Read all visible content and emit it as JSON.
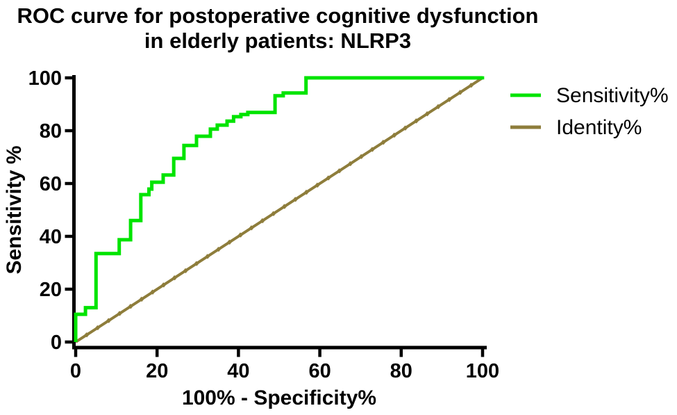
{
  "title": {
    "line1": "ROC curve for  postoperative cognitive dysfunction",
    "line2": "in elderly patients: NLRP3"
  },
  "legend": {
    "items": [
      {
        "label": "Sensitivity%",
        "color": "#00e400"
      },
      {
        "label": "Identity%",
        "color": "#8e7d3b"
      }
    ]
  },
  "chart_data": {
    "type": "line",
    "title": "ROC curve for postoperative cognitive dysfunction in elderly patients: NLRP3",
    "xlabel": "100% - Specificity%",
    "ylabel": "Sensitivity %",
    "xlim": [
      0,
      100
    ],
    "ylim": [
      0,
      100
    ],
    "x_ticks": [
      0,
      20,
      40,
      60,
      80,
      100
    ],
    "y_ticks": [
      0,
      20,
      40,
      60,
      80,
      100
    ],
    "grid": false,
    "legend_position": "right",
    "axis_color": "#000000",
    "series": [
      {
        "name": "Sensitivity%",
        "type": "step",
        "color": "#00e400",
        "points": [
          [
            0,
            0
          ],
          [
            0,
            10.5
          ],
          [
            2.4,
            10.5
          ],
          [
            2.4,
            13
          ],
          [
            5,
            13
          ],
          [
            5,
            33.5
          ],
          [
            10.7,
            33.5
          ],
          [
            10.7,
            38.7
          ],
          [
            13.5,
            38.7
          ],
          [
            13.5,
            46
          ],
          [
            16,
            46
          ],
          [
            16,
            55.8
          ],
          [
            18,
            55.8
          ],
          [
            18,
            57.9
          ],
          [
            18.7,
            57.9
          ],
          [
            18.7,
            60.5
          ],
          [
            21.5,
            60.5
          ],
          [
            21.5,
            63.2
          ],
          [
            24.1,
            63.2
          ],
          [
            24.1,
            69.5
          ],
          [
            26.6,
            69.5
          ],
          [
            26.6,
            74.4
          ],
          [
            29.7,
            74.4
          ],
          [
            29.7,
            77.9
          ],
          [
            33.1,
            77.9
          ],
          [
            33.1,
            80.6
          ],
          [
            34.8,
            80.6
          ],
          [
            34.8,
            82.1
          ],
          [
            37.2,
            82.1
          ],
          [
            37.2,
            83.6
          ],
          [
            38.8,
            83.6
          ],
          [
            38.8,
            85.3
          ],
          [
            40.6,
            85.3
          ],
          [
            40.6,
            86.1
          ],
          [
            42.3,
            86.1
          ],
          [
            42.3,
            86.9
          ],
          [
            49,
            86.9
          ],
          [
            49,
            93.2
          ],
          [
            51,
            93.2
          ],
          [
            51,
            94.3
          ],
          [
            56.6,
            94.3
          ],
          [
            56.6,
            100
          ],
          [
            100,
            100
          ]
        ],
        "flat_top_markers": {
          "y": 100,
          "x_start": 56.6,
          "x_end": 100,
          "count": 17
        }
      },
      {
        "name": "Identity%",
        "type": "line",
        "color": "#8e7d3b",
        "points": [
          [
            0,
            0
          ],
          [
            100,
            100
          ]
        ],
        "marker_step": 2.7
      }
    ]
  }
}
